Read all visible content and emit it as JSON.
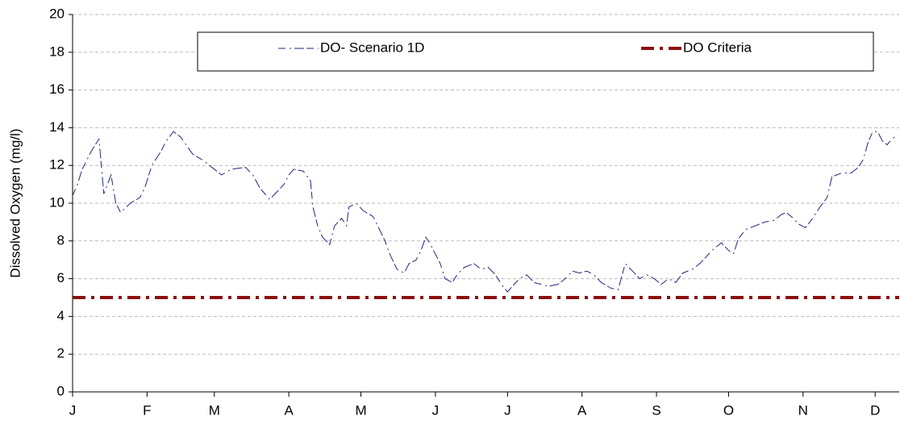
{
  "chart_data": {
    "type": "line",
    "y_label": "Dissolved Oxygen (mg/l)",
    "xlim": [
      0,
      344
    ],
    "xticks": [
      {
        "value": 0,
        "label": "J"
      },
      {
        "value": 31,
        "label": "F"
      },
      {
        "value": 59,
        "label": "M"
      },
      {
        "value": 90,
        "label": "A"
      },
      {
        "value": 120,
        "label": "M"
      },
      {
        "value": 151,
        "label": "J"
      },
      {
        "value": 181,
        "label": "J"
      },
      {
        "value": 212,
        "label": "A"
      },
      {
        "value": 243,
        "label": "S"
      },
      {
        "value": 273,
        "label": "O"
      },
      {
        "value": 304,
        "label": "N"
      },
      {
        "value": 334,
        "label": "D"
      }
    ],
    "ylim": [
      0,
      20
    ],
    "yticks": [
      0,
      2,
      4,
      6,
      8,
      10,
      12,
      14,
      16,
      18,
      20
    ],
    "grid": true,
    "series": [
      {
        "name": "DO- Scenario 1D",
        "color": "#1f2a80",
        "dash": "dashed",
        "x": [
          0,
          2,
          4,
          6,
          8,
          11,
          13,
          16,
          18,
          20,
          24,
          28,
          30,
          33,
          37,
          39,
          42,
          45,
          50,
          54,
          57,
          62,
          66,
          72,
          75,
          78,
          82,
          85,
          88,
          90,
          92,
          96,
          99,
          100,
          102,
          104,
          107,
          109,
          112,
          114,
          115,
          118,
          121,
          125,
          127,
          130,
          132,
          135,
          138,
          140,
          143,
          145,
          147,
          149,
          151,
          153,
          155,
          158,
          160,
          163,
          167,
          170,
          173,
          176,
          179,
          181,
          183,
          186,
          189,
          192,
          195,
          198,
          202,
          205,
          208,
          211,
          214,
          217,
          220,
          224,
          227,
          230,
          233,
          236,
          239,
          242,
          245,
          248,
          251,
          254,
          258,
          261,
          264,
          267,
          270,
          273,
          275,
          277,
          280,
          284,
          288,
          292,
          295,
          297,
          300,
          302,
          305,
          308,
          311,
          314,
          316,
          320,
          324,
          327,
          329,
          331,
          333,
          335,
          337,
          339,
          341,
          343
        ],
        "values": [
          10.4,
          11.0,
          11.8,
          12.3,
          12.8,
          13.4,
          10.5,
          11.5,
          10.0,
          9.5,
          10.0,
          10.3,
          10.8,
          12.0,
          12.8,
          13.3,
          13.8,
          13.5,
          12.6,
          12.3,
          12.0,
          11.5,
          11.8,
          11.9,
          11.5,
          10.8,
          10.2,
          10.6,
          11.0,
          11.5,
          11.8,
          11.7,
          11.2,
          9.8,
          8.8,
          8.2,
          7.8,
          8.8,
          9.2,
          8.8,
          9.8,
          10.0,
          9.6,
          9.3,
          8.8,
          8.0,
          7.3,
          6.5,
          6.3,
          6.8,
          7.0,
          7.5,
          8.2,
          7.8,
          7.3,
          6.8,
          6.0,
          5.8,
          6.2,
          6.6,
          6.8,
          6.5,
          6.6,
          6.2,
          5.6,
          5.3,
          5.6,
          6.0,
          6.2,
          5.8,
          5.7,
          5.6,
          5.7,
          6.0,
          6.4,
          6.3,
          6.4,
          6.2,
          5.8,
          5.5,
          5.4,
          6.8,
          6.4,
          6.0,
          6.2,
          6.0,
          5.7,
          6.0,
          5.8,
          6.3,
          6.5,
          6.8,
          7.2,
          7.6,
          7.9,
          7.5,
          7.3,
          8.1,
          8.6,
          8.8,
          9.0,
          9.1,
          9.4,
          9.5,
          9.2,
          8.9,
          8.7,
          9.2,
          9.8,
          10.3,
          11.4,
          11.6,
          11.6,
          11.9,
          12.3,
          13.2,
          13.8,
          13.8,
          13.3,
          13.1,
          13.4,
          13.6
        ]
      },
      {
        "name": "DO Criteria",
        "color": "#8b0f0f",
        "dash": "dashdot",
        "x": [
          0,
          344
        ],
        "values": [
          5,
          5
        ]
      }
    ]
  }
}
